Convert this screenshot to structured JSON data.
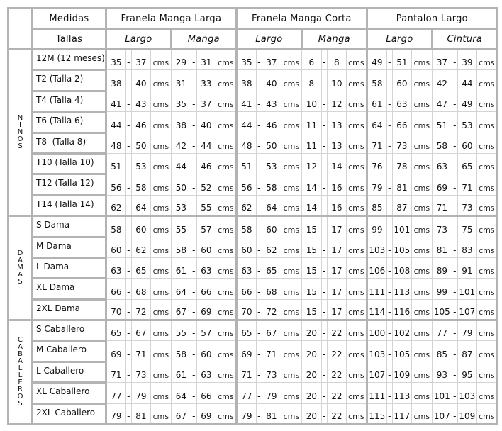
{
  "header": {
    "medidas": "Medidas",
    "tallas": "Tallas",
    "groups": [
      {
        "label": "Franela Manga Larga",
        "subs": [
          "Largo",
          "Manga"
        ]
      },
      {
        "label": "Franela Manga Corta",
        "subs": [
          "Largo",
          "Manga"
        ]
      },
      {
        "label": "Pantalon Largo",
        "subs": [
          "Largo",
          "Cintura"
        ]
      }
    ]
  },
  "separator": "-",
  "unit": "cms",
  "sections": [
    {
      "label": "NIÑOS",
      "rows": [
        {
          "talla": "12M (12 meses)",
          "values": [
            [
              "35",
              "37"
            ],
            [
              "29",
              "31"
            ],
            [
              "35",
              "37"
            ],
            [
              "6",
              "8"
            ],
            [
              "49",
              "51"
            ],
            [
              "37",
              "39"
            ]
          ]
        },
        {
          "talla": "T2 (Talla 2)",
          "values": [
            [
              "38",
              "40"
            ],
            [
              "31",
              "33"
            ],
            [
              "38",
              "40"
            ],
            [
              "8",
              "10"
            ],
            [
              "58",
              "60"
            ],
            [
              "42",
              "44"
            ]
          ]
        },
        {
          "talla": "T4 (Talla 4)",
          "values": [
            [
              "41",
              "43"
            ],
            [
              "35",
              "37"
            ],
            [
              "41",
              "43"
            ],
            [
              "10",
              "12"
            ],
            [
              "61",
              "63"
            ],
            [
              "47",
              "49"
            ]
          ]
        },
        {
          "talla": "T6 (Talla 6)",
          "values": [
            [
              "44",
              "46"
            ],
            [
              "38",
              "40"
            ],
            [
              "44",
              "46"
            ],
            [
              "11",
              "13"
            ],
            [
              "64",
              "66"
            ],
            [
              "51",
              "53"
            ]
          ]
        },
        {
          "talla": "T8  (Talla 8)",
          "values": [
            [
              "48",
              "50"
            ],
            [
              "42",
              "44"
            ],
            [
              "48",
              "50"
            ],
            [
              "11",
              "13"
            ],
            [
              "71",
              "73"
            ],
            [
              "58",
              "60"
            ]
          ]
        },
        {
          "talla": "T10 (Talla 10)",
          "values": [
            [
              "51",
              "53"
            ],
            [
              "44",
              "46"
            ],
            [
              "51",
              "53"
            ],
            [
              "12",
              "14"
            ],
            [
              "76",
              "78"
            ],
            [
              "63",
              "65"
            ]
          ]
        },
        {
          "talla": "T12 (Talla 12)",
          "values": [
            [
              "56",
              "58"
            ],
            [
              "50",
              "52"
            ],
            [
              "56",
              "58"
            ],
            [
              "14",
              "16"
            ],
            [
              "79",
              "81"
            ],
            [
              "69",
              "71"
            ]
          ]
        },
        {
          "talla": "T14 (Talla 14)",
          "values": [
            [
              "62",
              "64"
            ],
            [
              "53",
              "55"
            ],
            [
              "62",
              "64"
            ],
            [
              "14",
              "16"
            ],
            [
              "85",
              "87"
            ],
            [
              "71",
              "73"
            ]
          ]
        }
      ]
    },
    {
      "label": "DAMAS",
      "rows": [
        {
          "talla": "S Dama",
          "values": [
            [
              "58",
              "60"
            ],
            [
              "55",
              "57"
            ],
            [
              "58",
              "60"
            ],
            [
              "15",
              "17"
            ],
            [
              "99",
              "101"
            ],
            [
              "73",
              "75"
            ]
          ]
        },
        {
          "talla": "M Dama",
          "values": [
            [
              "60",
              "62"
            ],
            [
              "58",
              "60"
            ],
            [
              "60",
              "62"
            ],
            [
              "15",
              "17"
            ],
            [
              "103",
              "105"
            ],
            [
              "81",
              "83"
            ]
          ]
        },
        {
          "talla": "L Dama",
          "values": [
            [
              "63",
              "65"
            ],
            [
              "61",
              "63"
            ],
            [
              "63",
              "65"
            ],
            [
              "15",
              "17"
            ],
            [
              "106",
              "108"
            ],
            [
              "89",
              "91"
            ]
          ]
        },
        {
          "talla": "XL Dama",
          "values": [
            [
              "66",
              "68"
            ],
            [
              "64",
              "66"
            ],
            [
              "66",
              "68"
            ],
            [
              "15",
              "17"
            ],
            [
              "111",
              "113"
            ],
            [
              "99",
              "101"
            ]
          ]
        },
        {
          "talla": "2XL Dama",
          "values": [
            [
              "70",
              "72"
            ],
            [
              "67",
              "69"
            ],
            [
              "70",
              "72"
            ],
            [
              "15",
              "17"
            ],
            [
              "114",
              "116"
            ],
            [
              "105",
              "107"
            ]
          ]
        }
      ]
    },
    {
      "label": "CABALLEROS",
      "rows": [
        {
          "talla": "S Caballero",
          "values": [
            [
              "65",
              "67"
            ],
            [
              "55",
              "57"
            ],
            [
              "65",
              "67"
            ],
            [
              "20",
              "22"
            ],
            [
              "100",
              "102"
            ],
            [
              "77",
              "79"
            ]
          ]
        },
        {
          "talla": "M Caballero",
          "values": [
            [
              "69",
              "71"
            ],
            [
              "58",
              "60"
            ],
            [
              "69",
              "71"
            ],
            [
              "20",
              "22"
            ],
            [
              "103",
              "105"
            ],
            [
              "85",
              "87"
            ]
          ]
        },
        {
          "talla": "L Caballero",
          "values": [
            [
              "71",
              "73"
            ],
            [
              "61",
              "63"
            ],
            [
              "71",
              "73"
            ],
            [
              "20",
              "22"
            ],
            [
              "107",
              "109"
            ],
            [
              "93",
              "95"
            ]
          ]
        },
        {
          "talla": "XL Caballero",
          "values": [
            [
              "77",
              "79"
            ],
            [
              "64",
              "66"
            ],
            [
              "77",
              "79"
            ],
            [
              "20",
              "22"
            ],
            [
              "111",
              "113"
            ],
            [
              "101",
              "103"
            ]
          ]
        },
        {
          "talla": "2XL Caballero",
          "values": [
            [
              "79",
              "81"
            ],
            [
              "67",
              "69"
            ],
            [
              "79",
              "81"
            ],
            [
              "20",
              "22"
            ],
            [
              "115",
              "117"
            ],
            [
              "107",
              "109"
            ]
          ]
        }
      ]
    }
  ]
}
